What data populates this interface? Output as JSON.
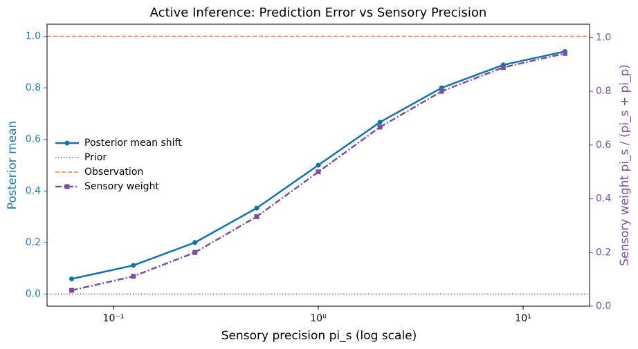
{
  "chart_data": {
    "type": "line",
    "title": "Active Inference: Prediction Error vs Sensory Precision",
    "xlabel": "Sensory precision pi_s (log scale)",
    "ylabel": "Posterior mean",
    "y2label": "Sensory weight pi_s / (pi_s + pi_p)",
    "ylabel_color": "#1a7db0",
    "y2label_color": "#7d52a3",
    "xscale": "log",
    "x": [
      0.0625,
      0.125,
      0.25,
      0.5,
      1,
      2,
      4,
      8,
      16
    ],
    "xlim": [
      0.0474,
      21.1
    ],
    "xticks": [
      {
        "value": 0.1,
        "label": "10⁻¹"
      },
      {
        "value": 1,
        "label": "10⁰"
      },
      {
        "value": 10,
        "label": "10¹"
      }
    ],
    "ylim": [
      -0.047,
      1.047
    ],
    "yticks": [
      {
        "value": 0,
        "label": "0.0"
      },
      {
        "value": 0.2,
        "label": "0.2"
      },
      {
        "value": 0.4,
        "label": "0.4"
      },
      {
        "value": 0.6,
        "label": "0.6"
      },
      {
        "value": 0.8,
        "label": "0.8"
      },
      {
        "value": 1,
        "label": "1.0"
      }
    ],
    "y2lim": [
      0,
      1.05
    ],
    "y2ticks": [
      {
        "value": 0,
        "label": "0.0"
      },
      {
        "value": 0.2,
        "label": "0.2"
      },
      {
        "value": 0.4,
        "label": "0.4"
      },
      {
        "value": 0.6,
        "label": "0.6"
      },
      {
        "value": 0.8,
        "label": "0.8"
      },
      {
        "value": 1,
        "label": "1.0"
      }
    ],
    "legend": "center left",
    "series": [
      {
        "name": "Posterior mean shift",
        "color": "#0f72ad",
        "linestyle": "solid",
        "marker": "circle",
        "values": [
          0.0588,
          0.1111,
          0.2,
          0.3333,
          0.5,
          0.6667,
          0.8,
          0.8889,
          0.9412
        ]
      },
      {
        "name": "Sensory weight",
        "color": "#7a4ea0",
        "linestyle": "dashdot",
        "marker": "square",
        "axis": "y2",
        "values": [
          0.0588,
          0.1111,
          0.2,
          0.3333,
          0.5,
          0.6667,
          0.8,
          0.8889,
          0.9412
        ]
      }
    ],
    "hlines": [
      {
        "name": "Prior",
        "value": 0,
        "color": "#666666",
        "linestyle": "dotted"
      },
      {
        "name": "Observation",
        "value": 1,
        "color": "#ee7a45",
        "linestyle": "dashed"
      }
    ]
  }
}
